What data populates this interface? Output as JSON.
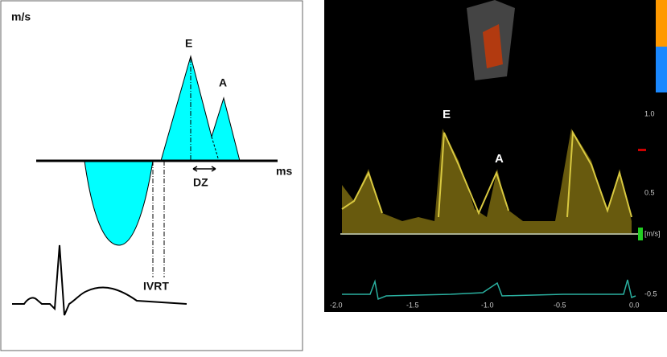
{
  "schematic": {
    "y_label": "m/s",
    "x_label": "ms",
    "peak_e": "E",
    "peak_a": "A",
    "deceleration": "DZ",
    "relaxation": "IVRT"
  },
  "doppler": {
    "peak_e": "E",
    "peak_a": "A",
    "x_ticks": [
      "-2.0",
      "-1.5",
      "-1.0",
      "-0.5",
      "0.0"
    ],
    "y_ticks": [
      "1.0",
      "0.5",
      "[m/s]",
      "-0.5"
    ]
  }
}
